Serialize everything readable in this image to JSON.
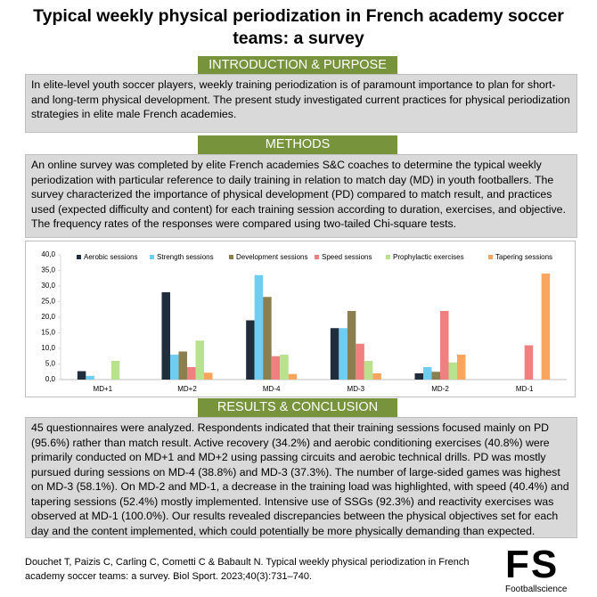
{
  "header": {
    "title": "Typical weekly physical periodization in French academy soccer teams: a survey"
  },
  "sections": [
    {
      "heading": "INTRODUCTION & PURPOSE",
      "text": "In elite-level youth soccer players, weekly training periodization is of paramount importance to plan for short- and long-term physical development. The present study investigated current practices for physical periodization strategies in elite male French academies."
    },
    {
      "heading": "METHODS",
      "text": "An online survey was completed by elite French academies S&C coaches to determine the typical weekly periodization with particular reference to daily training in relation to match day (MD) in youth footballers. The survey characterized the importance of physical development (PD) compared to match result, and practices used (expected difficulty and content) for each training session according to duration, exercises, and objective. The frequency rates of the responses were compared using two-tailed Chi-square tests."
    },
    {
      "heading": "RESULTS & CONCLUSION",
      "text": "45 questionnaires were analyzed. Respondents indicated that their training sessions focused mainly on PD (95.6%) rather than match result. Active recovery (34.2%) and aerobic conditioning exercises (40.8%) were primarily conducted on MD+1 and MD+2 using passing circuits and aerobic technical drills. PD was mostly pursued during sessions on MD-4 (38.8%) and MD-3 (37.3%). The number of large-sided games was highest on MD-3 (58.1%). On MD-2 and MD-1, a decrease in the training load was  highlighted, with speed (40.4%) and tapering sessions (52.4%) mostly implemented. Intensive use of SSGs (92.3%) and reactivity exercises was observed at MD-1 (100.0%). Our results revealed discrepancies between the physical objectives set for each day and the content implemented, which could potentially be more physically demanding than expected."
    }
  ],
  "citation": "Douchet T, Paizis C, Carling C, Cometti C & Babault N. Typical weekly physical periodization in French academy soccer teams: a survey. Biol Sport. 2023;40(3):731–740.",
  "logo": {
    "mark": "FS",
    "name": "Footballscience"
  },
  "chart_data": {
    "type": "bar",
    "categories": [
      "MD+1",
      "MD+2",
      "MD-4",
      "MD-3",
      "MD-2",
      "MD-1"
    ],
    "series": [
      {
        "name": "Aerobic sessions",
        "color": "#1f2d3d",
        "values": [
          2.7,
          28,
          19,
          16.5,
          2,
          0
        ]
      },
      {
        "name": "Strength sessions",
        "color": "#6fcdf2",
        "values": [
          1.2,
          8,
          33.5,
          16.5,
          4,
          0
        ]
      },
      {
        "name": "Development sessions",
        "color": "#8b7e4f",
        "values": [
          0,
          9,
          26.5,
          22,
          2.5,
          0
        ]
      },
      {
        "name": "Speed sessions",
        "color": "#f07f7f",
        "values": [
          0,
          4,
          7.5,
          11.5,
          22,
          11
        ]
      },
      {
        "name": "Prophylactic exercises",
        "color": "#b9e28e",
        "values": [
          6,
          12.5,
          8,
          6,
          5.5,
          0
        ]
      },
      {
        "name": "Tapering sessions",
        "color": "#f7a55f",
        "values": [
          0,
          2.2,
          1.8,
          2,
          8,
          34
        ]
      }
    ],
    "ylim": [
      0,
      40
    ],
    "yticks": [
      {
        "value": 0,
        "label": "0,0"
      },
      {
        "value": 5,
        "label": "5,0"
      },
      {
        "value": 10,
        "label": "10,0"
      },
      {
        "value": 15,
        "label": "15,0"
      },
      {
        "value": 20,
        "label": "20,0"
      },
      {
        "value": 25,
        "label": "25,0"
      },
      {
        "value": 30,
        "label": "30,0"
      },
      {
        "value": 35,
        "label": "35,0"
      },
      {
        "value": 40,
        "label": "40,0"
      }
    ],
    "grid": false
  }
}
